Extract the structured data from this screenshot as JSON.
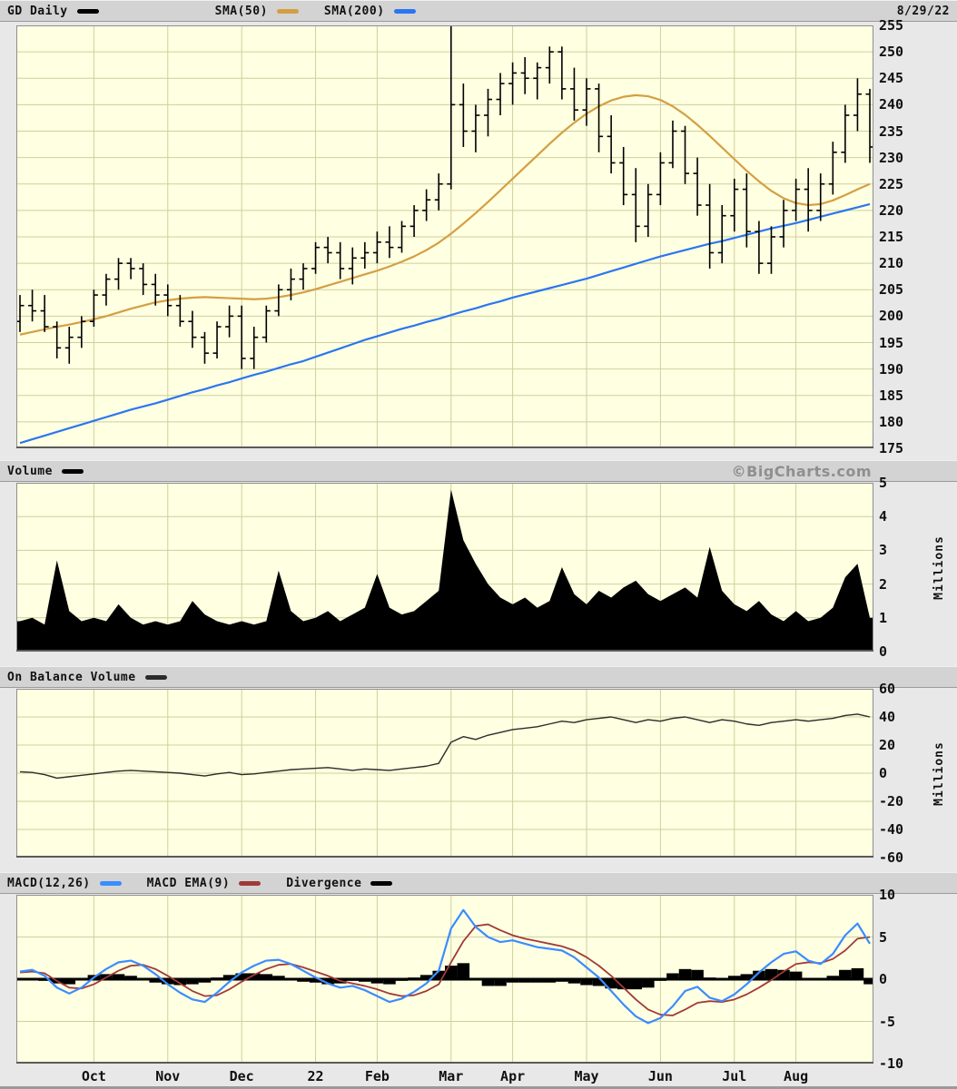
{
  "header": {
    "symbol": "GD Daily",
    "sma50": "SMA(50)",
    "sma200": "SMA(200)",
    "date": "8/29/22"
  },
  "volume_header": {
    "label": "Volume",
    "watermark": "©BigCharts.com"
  },
  "obv_header": {
    "label": "On Balance Volume"
  },
  "macd_header": {
    "macd": "MACD(12,26)",
    "ema": "MACD EMA(9)",
    "divergence": "Divergence"
  },
  "colors": {
    "page_bg": "#e8e8e8",
    "header_bg": "#d3d3d3",
    "plot_bg": "#ffffe1",
    "grid": "#cfcf9f",
    "border": "#8f8f8f",
    "border_bottom": "#5a5a5a",
    "price": "#000000",
    "sma50": "#d49f43",
    "sma200": "#2b76f0",
    "volume_fill": "#000000",
    "obv_line": "#2b2b2b",
    "macd_line": "#3b8cff",
    "macd_ema": "#a03a3a",
    "divergence": "#000000",
    "watermark": "#8f8f8f"
  },
  "chart_data": [
    {
      "type": "ohlc",
      "title": "GD Daily",
      "date": "8/29/22",
      "ylim": [
        175,
        255
      ],
      "yticks": [
        255,
        250,
        245,
        240,
        235,
        230,
        225,
        220,
        215,
        210,
        205,
        200,
        195,
        190,
        185,
        180,
        175
      ],
      "x_axis_months": [
        {
          "label": "Oct",
          "i": 6
        },
        {
          "label": "Nov",
          "i": 12
        },
        {
          "label": "Dec",
          "i": 18
        },
        {
          "label": "22",
          "i": 24
        },
        {
          "label": "Feb",
          "i": 29
        },
        {
          "label": "Mar",
          "i": 35
        },
        {
          "label": "Apr",
          "i": 40
        },
        {
          "label": "May",
          "i": 46
        },
        {
          "label": "Jun",
          "i": 52
        },
        {
          "label": "Jul",
          "i": 58
        },
        {
          "label": "Aug",
          "i": 63
        }
      ],
      "ohlc": [
        [
          199,
          204,
          197,
          202
        ],
        [
          202,
          205,
          199,
          201
        ],
        [
          201,
          204,
          197,
          198
        ],
        [
          198,
          199,
          192,
          194
        ],
        [
          194,
          198,
          191,
          196
        ],
        [
          196,
          200,
          194,
          199
        ],
        [
          199,
          205,
          198,
          204
        ],
        [
          204,
          208,
          202,
          207
        ],
        [
          207,
          211,
          205,
          210
        ],
        [
          210,
          211,
          207,
          209
        ],
        [
          209,
          210,
          204,
          206
        ],
        [
          206,
          208,
          202,
          204
        ],
        [
          204,
          206,
          200,
          202
        ],
        [
          202,
          204,
          198,
          199
        ],
        [
          199,
          201,
          194,
          196
        ],
        [
          196,
          197,
          191,
          193
        ],
        [
          193,
          199,
          192,
          198
        ],
        [
          198,
          202,
          196,
          200
        ],
        [
          200,
          202,
          190,
          192
        ],
        [
          192,
          198,
          190,
          196
        ],
        [
          196,
          202,
          195,
          201
        ],
        [
          201,
          206,
          200,
          205
        ],
        [
          205,
          209,
          203,
          207
        ],
        [
          207,
          210,
          205,
          209
        ],
        [
          209,
          214,
          208,
          213
        ],
        [
          213,
          215,
          210,
          212
        ],
        [
          212,
          214,
          207,
          209
        ],
        [
          209,
          213,
          206,
          211
        ],
        [
          211,
          214,
          209,
          212
        ],
        [
          212,
          216,
          210,
          214
        ],
        [
          214,
          217,
          211,
          213
        ],
        [
          213,
          218,
          212,
          217
        ],
        [
          217,
          221,
          215,
          220
        ],
        [
          220,
          224,
          218,
          222
        ],
        [
          222,
          227,
          220,
          225
        ],
        [
          225,
          255,
          224,
          240
        ],
        [
          240,
          244,
          232,
          235
        ],
        [
          235,
          240,
          231,
          238
        ],
        [
          238,
          243,
          234,
          241
        ],
        [
          241,
          246,
          238,
          244
        ],
        [
          244,
          248,
          240,
          246
        ],
        [
          246,
          249,
          242,
          245
        ],
        [
          245,
          248,
          241,
          247
        ],
        [
          247,
          251,
          244,
          250
        ],
        [
          250,
          251,
          241,
          243
        ],
        [
          243,
          247,
          237,
          239
        ],
        [
          239,
          245,
          236,
          243
        ],
        [
          243,
          244,
          231,
          234
        ],
        [
          234,
          238,
          227,
          229
        ],
        [
          229,
          232,
          221,
          223
        ],
        [
          223,
          228,
          214,
          217
        ],
        [
          217,
          225,
          215,
          223
        ],
        [
          223,
          231,
          221,
          229
        ],
        [
          229,
          237,
          228,
          235
        ],
        [
          235,
          236,
          225,
          227
        ],
        [
          227,
          230,
          219,
          221
        ],
        [
          221,
          225,
          209,
          212
        ],
        [
          212,
          221,
          210,
          219
        ],
        [
          219,
          226,
          216,
          224
        ],
        [
          224,
          227,
          213,
          216
        ],
        [
          216,
          218,
          208,
          210
        ],
        [
          210,
          217,
          208,
          215
        ],
        [
          215,
          222,
          213,
          220
        ],
        [
          220,
          226,
          218,
          224
        ],
        [
          224,
          228,
          216,
          220
        ],
        [
          220,
          227,
          218,
          225
        ],
        [
          225,
          233,
          223,
          231
        ],
        [
          231,
          240,
          229,
          238
        ],
        [
          238,
          245,
          235,
          242
        ],
        [
          242,
          243,
          229,
          232
        ]
      ],
      "series": [
        {
          "name": "SMA(50)",
          "color": "#d49f43",
          "values": [
            196.5,
            197.0,
            197.5,
            198.0,
            198.4,
            198.9,
            199.4,
            200.0,
            200.7,
            201.4,
            202.0,
            202.6,
            203.0,
            203.3,
            203.5,
            203.6,
            203.5,
            203.4,
            203.3,
            203.2,
            203.3,
            203.6,
            204.0,
            204.5,
            205.1,
            205.8,
            206.5,
            207.2,
            207.9,
            208.6,
            209.4,
            210.3,
            211.3,
            212.5,
            213.9,
            215.6,
            217.5,
            219.5,
            221.6,
            223.8,
            226.0,
            228.2,
            230.4,
            232.6,
            234.7,
            236.6,
            238.3,
            239.7,
            240.8,
            241.5,
            241.8,
            241.6,
            240.9,
            239.7,
            238.1,
            236.2,
            234.1,
            231.9,
            229.7,
            227.5,
            225.5,
            223.7,
            222.3,
            221.4,
            221.0,
            221.2,
            221.9,
            222.9,
            224.0,
            225.0
          ]
        },
        {
          "name": "SMA(200)",
          "color": "#2b76f0",
          "values": [
            176.0,
            176.7,
            177.4,
            178.1,
            178.8,
            179.5,
            180.2,
            180.9,
            181.6,
            182.3,
            182.9,
            183.5,
            184.2,
            184.9,
            185.6,
            186.2,
            186.9,
            187.5,
            188.2,
            188.9,
            189.5,
            190.2,
            190.9,
            191.5,
            192.3,
            193.1,
            193.9,
            194.7,
            195.5,
            196.2,
            196.9,
            197.6,
            198.2,
            198.9,
            199.5,
            200.2,
            200.9,
            201.5,
            202.2,
            202.8,
            203.5,
            204.1,
            204.7,
            205.3,
            205.9,
            206.5,
            207.1,
            207.8,
            208.5,
            209.2,
            209.9,
            210.6,
            211.3,
            211.9,
            212.5,
            213.1,
            213.7,
            214.2,
            214.8,
            215.4,
            216.0,
            216.6,
            217.1,
            217.6,
            218.2,
            218.8,
            219.4,
            220.0,
            220.6,
            221.2
          ]
        }
      ]
    },
    {
      "type": "area",
      "title": "Volume",
      "ylabel": "Millions",
      "ylim": [
        0,
        5
      ],
      "yticks": [
        5,
        4,
        3,
        2,
        1,
        0
      ],
      "values": [
        0.9,
        1.0,
        0.8,
        2.7,
        1.2,
        0.9,
        1.0,
        0.9,
        1.4,
        1.0,
        0.8,
        0.9,
        0.8,
        0.9,
        1.5,
        1.1,
        0.9,
        0.8,
        0.9,
        0.8,
        0.9,
        2.4,
        1.2,
        0.9,
        1.0,
        1.2,
        0.9,
        1.1,
        1.3,
        2.3,
        1.3,
        1.1,
        1.2,
        1.5,
        1.8,
        4.8,
        3.3,
        2.6,
        2.0,
        1.6,
        1.4,
        1.6,
        1.3,
        1.5,
        2.5,
        1.7,
        1.4,
        1.8,
        1.6,
        1.9,
        2.1,
        1.7,
        1.5,
        1.7,
        1.9,
        1.6,
        3.1,
        1.8,
        1.4,
        1.2,
        1.5,
        1.1,
        0.9,
        1.2,
        0.9,
        1.0,
        1.3,
        2.2,
        2.6,
        1.0
      ]
    },
    {
      "type": "line",
      "title": "On Balance Volume",
      "ylabel": "Millions",
      "ylim": [
        -60,
        60
      ],
      "yticks": [
        60,
        40,
        20,
        0,
        -20,
        -40,
        -60
      ],
      "values": [
        1,
        0.5,
        -1,
        -3.5,
        -2.5,
        -1.5,
        -0.5,
        0.5,
        1.5,
        2,
        1.5,
        1,
        0.5,
        0,
        -1,
        -2,
        -0.5,
        0.5,
        -1,
        -0.5,
        0.5,
        1.5,
        2.5,
        3,
        3.5,
        4,
        3,
        2,
        3,
        2.5,
        2,
        3,
        4,
        5,
        7,
        22,
        26,
        24,
        27,
        29,
        31,
        32,
        33,
        35,
        37,
        36,
        38,
        39,
        40,
        38,
        36,
        38,
        37,
        39,
        40,
        38,
        36,
        38,
        37,
        35,
        34,
        36,
        37,
        38,
        37,
        38,
        39,
        41,
        42,
        40
      ]
    },
    {
      "type": "macd",
      "title": "MACD(12,26)",
      "ylim": [
        -10,
        10
      ],
      "yticks": [
        10,
        5,
        0,
        -5,
        -10
      ],
      "series": [
        {
          "name": "MACD(12,26)",
          "color": "#3b8cff",
          "values": [
            0.9,
            1.1,
            0.4,
            -1.0,
            -1.7,
            -1.0,
            0.2,
            1.2,
            2.0,
            2.2,
            1.6,
            0.6,
            -0.6,
            -1.6,
            -2.4,
            -2.7,
            -1.6,
            -0.3,
            0.8,
            1.6,
            2.2,
            2.3,
            1.8,
            1.0,
            0.2,
            -0.5,
            -1.0,
            -0.8,
            -1.3,
            -2.0,
            -2.7,
            -2.3,
            -1.5,
            -0.5,
            1.0,
            6.0,
            8.2,
            6.2,
            5.0,
            4.4,
            4.6,
            4.2,
            3.8,
            3.6,
            3.4,
            2.6,
            1.4,
            0.2,
            -1.4,
            -3.0,
            -4.4,
            -5.2,
            -4.6,
            -3.2,
            -1.4,
            -0.9,
            -2.2,
            -2.6,
            -1.8,
            -0.6,
            0.8,
            2.0,
            3.0,
            3.3,
            2.2,
            1.8,
            3.0,
            5.2,
            6.6,
            4.2
          ]
        },
        {
          "name": "MACD EMA(9)",
          "color": "#a03a3a",
          "values": [
            0.8,
            0.9,
            0.7,
            -0.2,
            -1.0,
            -1.1,
            -0.6,
            0.2,
            1.0,
            1.6,
            1.7,
            1.2,
            0.4,
            -0.5,
            -1.4,
            -2.0,
            -1.9,
            -1.2,
            -0.3,
            0.5,
            1.2,
            1.7,
            1.8,
            1.4,
            0.9,
            0.4,
            -0.2,
            -0.5,
            -0.8,
            -1.2,
            -1.7,
            -2.0,
            -1.9,
            -1.4,
            -0.6,
            2.0,
            4.5,
            6.3,
            6.5,
            5.8,
            5.2,
            4.8,
            4.5,
            4.2,
            3.9,
            3.4,
            2.6,
            1.6,
            0.4,
            -1.0,
            -2.4,
            -3.6,
            -4.2,
            -4.3,
            -3.6,
            -2.8,
            -2.6,
            -2.7,
            -2.4,
            -1.8,
            -1.0,
            -0.1,
            0.9,
            1.8,
            2.0,
            1.9,
            2.4,
            3.4,
            4.8,
            5.0
          ]
        },
        {
          "name": "Divergence",
          "color": "#000000",
          "style": "histogram",
          "values": [
            0.1,
            0.1,
            -0.2,
            -0.5,
            -0.6,
            -0.1,
            0.5,
            0.6,
            0.6,
            0.4,
            -0.1,
            -0.4,
            -0.6,
            -0.7,
            -0.6,
            -0.4,
            0.2,
            0.5,
            0.7,
            0.7,
            0.6,
            0.4,
            0.0,
            -0.3,
            -0.4,
            -0.6,
            -0.5,
            -0.2,
            -0.3,
            -0.5,
            -0.6,
            -0.2,
            0.2,
            0.5,
            1.0,
            1.6,
            1.9,
            0.0,
            -0.8,
            -0.8,
            -0.4,
            -0.4,
            -0.4,
            -0.4,
            -0.3,
            -0.5,
            -0.7,
            -0.8,
            -1.1,
            -1.2,
            -1.2,
            -1.0,
            -0.2,
            0.7,
            1.2,
            1.1,
            0.2,
            0.0,
            0.4,
            0.6,
            1.0,
            1.2,
            1.1,
            0.9,
            0.1,
            -0.1,
            0.4,
            1.1,
            1.3,
            -0.6
          ]
        }
      ]
    }
  ]
}
